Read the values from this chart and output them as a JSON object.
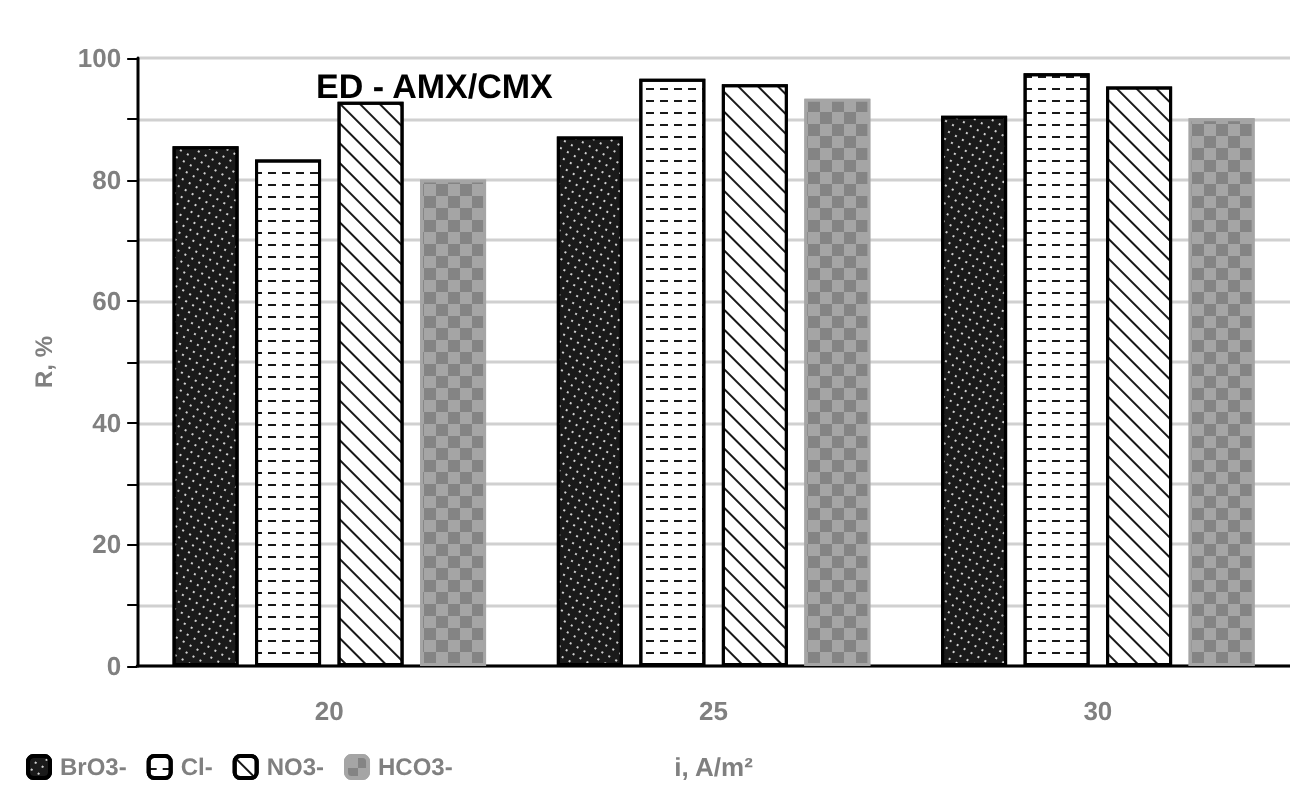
{
  "chart_data": {
    "type": "bar",
    "title": "ED - AMX/CMX",
    "xlabel": "i, A/m²",
    "ylabel": "R, %",
    "categories": [
      "20",
      "25",
      "30"
    ],
    "series": [
      {
        "name": "BrO3-",
        "color": "#1a1a1a",
        "values": [
          85.5,
          87.1,
          90.5
        ]
      },
      {
        "name": "Cl-",
        "color": "#ffffff",
        "values": [
          83.3,
          96.6,
          97.5
        ]
      },
      {
        "name": "NO3-",
        "color": "#ffffff",
        "values": [
          92.8,
          95.7,
          95.3
        ]
      },
      {
        "name": "HCO3-",
        "color": "#a5a5a5",
        "values": [
          80,
          93.3,
          90.1
        ]
      }
    ],
    "ylim": [
      0,
      100
    ],
    "yticks": [
      0,
      {
        "value": 10,
        "label": null
      },
      20,
      {
        "value": 30,
        "label": null
      },
      40,
      {
        "value": 50,
        "label": null
      },
      60,
      {
        "value": 70,
        "label": null
      },
      80,
      {
        "value": 90,
        "label": null
      },
      100
    ],
    "grid": "y",
    "legend": "bottom left"
  }
}
